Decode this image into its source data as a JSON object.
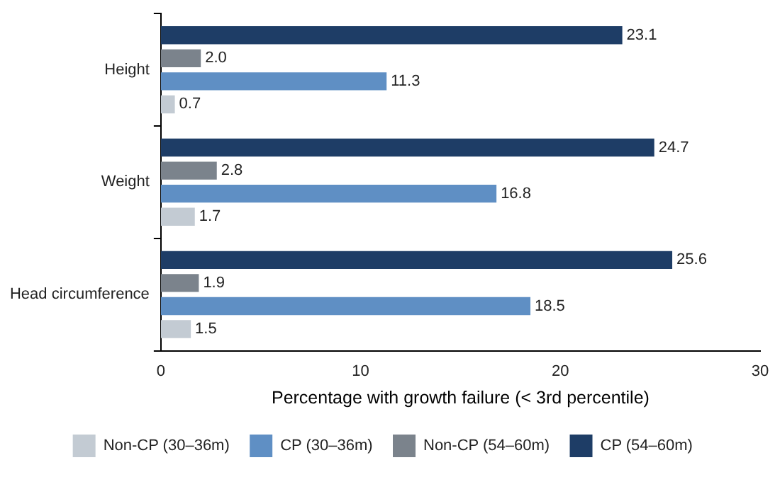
{
  "chart_data": {
    "type": "bar",
    "orientation": "horizontal",
    "xlabel": "Percentage with growth failure (< 3rd percentile)",
    "categories": [
      "Height",
      "Weight",
      "Head circumference"
    ],
    "series": [
      {
        "name": "Non-CP (30–36m)",
        "color": "#c3cbd3",
        "values": [
          0.7,
          1.7,
          1.5
        ],
        "value_labels": [
          "0.7",
          "1.7",
          "1.5"
        ]
      },
      {
        "name": "CP (30–36m)",
        "color": "#5f8fc4",
        "values": [
          11.3,
          16.8,
          18.5
        ],
        "value_labels": [
          "11.3",
          "16.8",
          "18.5"
        ]
      },
      {
        "name": "Non-CP (54–60m)",
        "color": "#7b838c",
        "values": [
          2.0,
          2.8,
          1.9
        ],
        "value_labels": [
          "2.0",
          "2.8",
          "1.9"
        ]
      },
      {
        "name": "CP (54–60m)",
        "color": "#1e3d66",
        "values": [
          23.1,
          24.7,
          25.6
        ],
        "value_labels": [
          "23.1",
          "24.7",
          "25.6"
        ]
      }
    ],
    "xlim": [
      0,
      30
    ],
    "xticks": [
      0,
      10,
      20,
      30
    ],
    "grid": false,
    "legend": "bottom"
  }
}
